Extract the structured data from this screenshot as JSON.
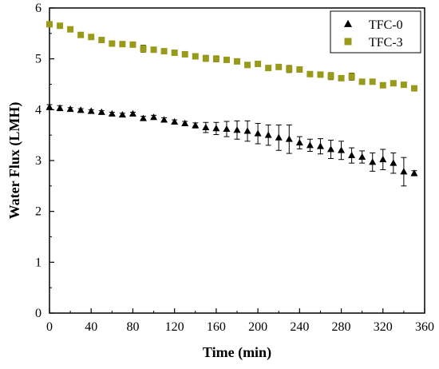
{
  "chart_data": {
    "type": "scatter",
    "title": "",
    "xlabel": "Time (min)",
    "ylabel": "Water Flux (LMH)",
    "xlim": [
      0,
      360
    ],
    "ylim": [
      0,
      6
    ],
    "xticks": [
      0,
      40,
      80,
      120,
      160,
      200,
      240,
      280,
      320,
      360
    ],
    "yticks": [
      0,
      1,
      2,
      3,
      4,
      5,
      6
    ],
    "grid": false,
    "legend_position": "top-right",
    "series": [
      {
        "name": "TFC-0",
        "marker": "triangle",
        "color": "#000000",
        "x": [
          0,
          10,
          20,
          30,
          40,
          50,
          60,
          70,
          80,
          90,
          100,
          110,
          120,
          130,
          140,
          150,
          160,
          170,
          180,
          190,
          200,
          210,
          220,
          230,
          240,
          250,
          260,
          270,
          280,
          290,
          300,
          310,
          320,
          330,
          340,
          350
        ],
        "y": [
          4.05,
          4.03,
          4.01,
          3.99,
          3.97,
          3.95,
          3.92,
          3.9,
          3.92,
          3.83,
          3.85,
          3.8,
          3.76,
          3.73,
          3.69,
          3.65,
          3.63,
          3.62,
          3.6,
          3.58,
          3.53,
          3.5,
          3.45,
          3.42,
          3.35,
          3.3,
          3.28,
          3.22,
          3.2,
          3.1,
          3.07,
          2.97,
          3.02,
          2.95,
          2.78,
          2.75
        ],
        "error": [
          0.05,
          0.05,
          0.03,
          0.03,
          0.03,
          0.03,
          0.03,
          0.03,
          0.03,
          0.04,
          0.04,
          0.04,
          0.04,
          0.04,
          0.05,
          0.1,
          0.12,
          0.15,
          0.18,
          0.2,
          0.2,
          0.2,
          0.25,
          0.28,
          0.12,
          0.12,
          0.15,
          0.18,
          0.18,
          0.15,
          0.12,
          0.18,
          0.2,
          0.2,
          0.28,
          0.05
        ]
      },
      {
        "name": "TFC-3",
        "marker": "square",
        "color": "#9a9a1a",
        "x": [
          0,
          10,
          20,
          30,
          40,
          50,
          60,
          70,
          80,
          90,
          100,
          110,
          120,
          130,
          140,
          150,
          160,
          170,
          180,
          190,
          200,
          210,
          220,
          230,
          240,
          250,
          260,
          270,
          280,
          290,
          300,
          310,
          320,
          330,
          340,
          350
        ],
        "y": [
          5.68,
          5.65,
          5.58,
          5.47,
          5.43,
          5.37,
          5.3,
          5.29,
          5.28,
          5.2,
          5.18,
          5.15,
          5.12,
          5.09,
          5.05,
          5.01,
          5.0,
          4.98,
          4.95,
          4.88,
          4.9,
          4.82,
          4.84,
          4.8,
          4.79,
          4.7,
          4.69,
          4.66,
          4.62,
          4.65,
          4.55,
          4.55,
          4.48,
          4.52,
          4.49,
          4.42
        ],
        "error": [
          0.02,
          0.02,
          0.02,
          0.02,
          0.02,
          0.02,
          0.02,
          0.02,
          0.02,
          0.07,
          0.03,
          0.03,
          0.03,
          0.03,
          0.05,
          0.06,
          0.06,
          0.05,
          0.05,
          0.04,
          0.04,
          0.04,
          0.03,
          0.07,
          0.04,
          0.03,
          0.03,
          0.07,
          0.04,
          0.07,
          0.03,
          0.03,
          0.03,
          0.03,
          0.03,
          0.03
        ]
      }
    ]
  }
}
